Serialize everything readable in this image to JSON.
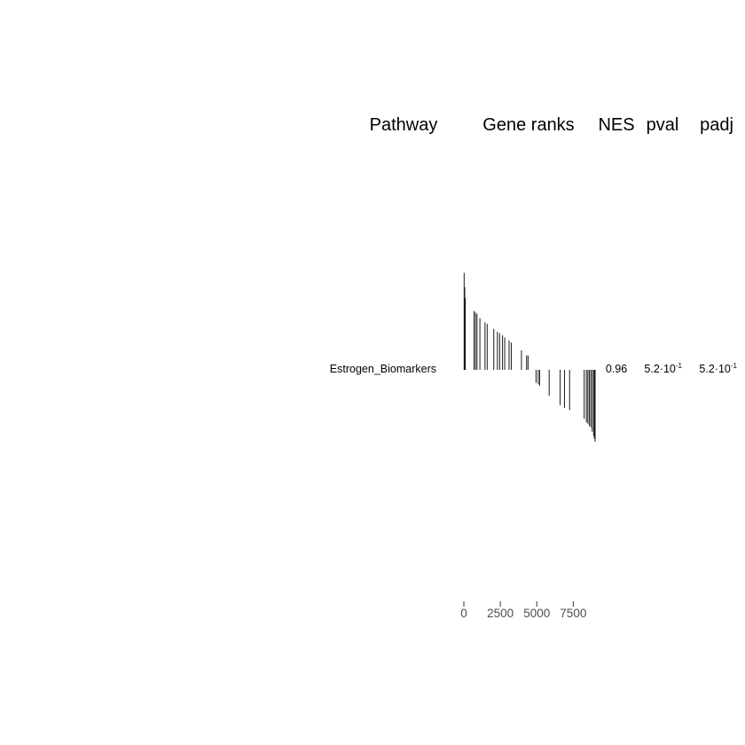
{
  "chart_data": {
    "type": "table",
    "headers": {
      "pathway": "Pathway",
      "gene_ranks": "Gene ranks",
      "nes": "NES",
      "pval": "pval",
      "padj": "padj"
    },
    "rows": [
      {
        "pathway": "Estrogen_Biomarkers",
        "nes": "0.96",
        "pval": {
          "mantissa": "5.2·10",
          "exponent": "-1"
        },
        "padj": {
          "mantissa": "5.2·10",
          "exponent": "-1"
        },
        "gene_ranks": {
          "x_axis": {
            "ticks": [
              0,
              2500,
              5000,
              7500
            ],
            "labels": [
              "0",
              "2500",
              "5000",
              "7500"
            ],
            "xlim": [
              0,
              9000
            ]
          },
          "y_range": [
            -1,
            1.35
          ],
          "hits": [
            {
              "rank": 20,
              "stat": 1.35
            },
            {
              "rank": 60,
              "stat": 1.15
            },
            {
              "rank": 100,
              "stat": 1.0
            },
            {
              "rank": 700,
              "stat": 0.82
            },
            {
              "rank": 800,
              "stat": 0.8
            },
            {
              "rank": 900,
              "stat": 0.78
            },
            {
              "rank": 1100,
              "stat": 0.72
            },
            {
              "rank": 1450,
              "stat": 0.66
            },
            {
              "rank": 1600,
              "stat": 0.64
            },
            {
              "rank": 2050,
              "stat": 0.57
            },
            {
              "rank": 2300,
              "stat": 0.53
            },
            {
              "rank": 2450,
              "stat": 0.51
            },
            {
              "rank": 2650,
              "stat": 0.48
            },
            {
              "rank": 2800,
              "stat": 0.45
            },
            {
              "rank": 3100,
              "stat": 0.41
            },
            {
              "rank": 3250,
              "stat": 0.38
            },
            {
              "rank": 3950,
              "stat": 0.27
            },
            {
              "rank": 4300,
              "stat": 0.2
            },
            {
              "rank": 4400,
              "stat": 0.2
            },
            {
              "rank": 4950,
              "stat": -0.18
            },
            {
              "rank": 5100,
              "stat": -0.2
            },
            {
              "rank": 5200,
              "stat": -0.22
            },
            {
              "rank": 5850,
              "stat": -0.36
            },
            {
              "rank": 6600,
              "stat": -0.49
            },
            {
              "rank": 6900,
              "stat": -0.53
            },
            {
              "rank": 7250,
              "stat": -0.56
            },
            {
              "rank": 8250,
              "stat": -0.68
            },
            {
              "rank": 8400,
              "stat": -0.73
            },
            {
              "rank": 8500,
              "stat": -0.75
            },
            {
              "rank": 8600,
              "stat": -0.78
            },
            {
              "rank": 8700,
              "stat": -0.8
            },
            {
              "rank": 8800,
              "stat": -0.86
            },
            {
              "rank": 8900,
              "stat": -0.92
            },
            {
              "rank": 8950,
              "stat": -0.96
            },
            {
              "rank": 9000,
              "stat": -1.0
            }
          ]
        }
      }
    ]
  }
}
